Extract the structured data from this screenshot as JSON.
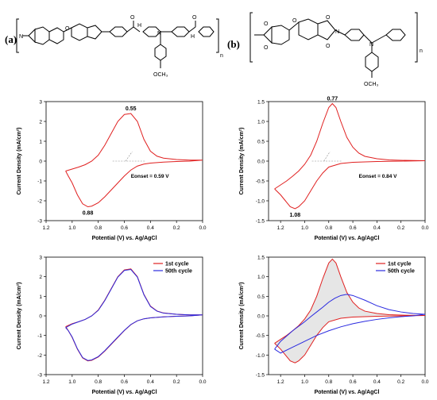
{
  "panel_labels": {
    "a": "(a)",
    "b": "(b)"
  },
  "structures": {
    "a": {
      "n": "n",
      "och3": "OCH₃",
      "o": "O",
      "n_atom": "N",
      "nh": "H"
    },
    "b": {
      "n": "n",
      "och3": "OCH₃",
      "o": "O",
      "n_atom": "N"
    }
  },
  "colors": {
    "red": "#e02020",
    "blue": "#2a2ae0",
    "shade": "#b8b8b8",
    "molecule": "#000000"
  },
  "chart_data": [
    {
      "type": "line",
      "id": "cv-a",
      "xlabel": "Potential (V) vs. Ag/AgCl",
      "ylabel": "Current Density (mA/cm²)",
      "xlim": [
        1.2,
        0.0
      ],
      "ylim": [
        -3,
        3
      ],
      "xticks": [
        "1.2",
        "1.0",
        "0.8",
        "0.6",
        "0.4",
        "0.2",
        "0.0"
      ],
      "yticks": [
        "3",
        "2",
        "1",
        "0",
        "-1",
        "-2",
        "-3"
      ],
      "annotations": {
        "peak_ox": "0.55",
        "peak_red": "0.88",
        "onset": "Eonset = 0.59 V"
      },
      "series": [
        {
          "color": "red",
          "x": [
            1.05,
            1.0,
            0.95,
            0.9,
            0.85,
            0.8,
            0.75,
            0.7,
            0.65,
            0.6,
            0.55,
            0.5,
            0.45,
            0.4,
            0.35,
            0.3,
            0.2,
            0.1,
            0.0,
            0.1,
            0.2,
            0.3,
            0.4,
            0.45,
            0.5,
            0.55,
            0.6,
            0.65,
            0.7,
            0.75,
            0.8,
            0.85,
            0.88,
            0.92,
            0.96,
            1.0,
            1.03,
            1.05
          ],
          "y": [
            -0.5,
            -0.4,
            -0.3,
            -0.18,
            0.0,
            0.3,
            0.8,
            1.4,
            2.0,
            2.35,
            2.4,
            2.0,
            1.1,
            0.5,
            0.25,
            0.15,
            0.08,
            0.05,
            0.05,
            0.0,
            -0.02,
            -0.05,
            -0.1,
            -0.15,
            -0.25,
            -0.45,
            -0.75,
            -1.1,
            -1.45,
            -1.8,
            -2.1,
            -2.27,
            -2.3,
            -2.15,
            -1.7,
            -1.1,
            -0.75,
            -0.5
          ]
        }
      ]
    },
    {
      "type": "line",
      "id": "cv-b",
      "xlabel": "Potential (V) vs. Ag/AgCl",
      "ylabel": "Current Density (mA/cm²)",
      "xlim": [
        1.3,
        0.0
      ],
      "ylim": [
        -1.5,
        1.5
      ],
      "xticks": [
        "1.2",
        "1.0",
        "0.8",
        "0.6",
        "0.4",
        "0.2",
        "0.0"
      ],
      "yticks": [
        "1.5",
        "1.0",
        "0.5",
        "0.0",
        "-0.5",
        "-1.0",
        "-1.5"
      ],
      "annotations": {
        "peak_ox": "0.77",
        "peak_red": "1.08",
        "onset": "Eonset = 0.84 V"
      },
      "series": [
        {
          "color": "red",
          "x": [
            1.25,
            1.2,
            1.15,
            1.1,
            1.05,
            1.0,
            0.95,
            0.9,
            0.85,
            0.8,
            0.77,
            0.74,
            0.7,
            0.65,
            0.6,
            0.55,
            0.5,
            0.4,
            0.3,
            0.2,
            0.0,
            0.2,
            0.4,
            0.6,
            0.7,
            0.8,
            0.85,
            0.9,
            0.95,
            1.0,
            1.05,
            1.08,
            1.12,
            1.16,
            1.2,
            1.25
          ],
          "y": [
            -0.7,
            -0.6,
            -0.5,
            -0.38,
            -0.25,
            -0.08,
            0.15,
            0.5,
            0.95,
            1.35,
            1.45,
            1.35,
            1.0,
            0.6,
            0.35,
            0.2,
            0.12,
            0.06,
            0.03,
            0.02,
            0.01,
            0.0,
            -0.01,
            -0.03,
            -0.06,
            -0.15,
            -0.3,
            -0.5,
            -0.75,
            -1.0,
            -1.15,
            -1.2,
            -1.15,
            -1.0,
            -0.85,
            -0.7
          ]
        }
      ]
    },
    {
      "type": "line",
      "id": "cv-c",
      "xlabel": "Potential (V) vs. Ag/AgCl",
      "ylabel": "Current Density (mA/cm²)",
      "xlim": [
        1.2,
        0.0
      ],
      "ylim": [
        -3,
        3
      ],
      "xticks": [
        "1.2",
        "1.0",
        "0.8",
        "0.6",
        "0.4",
        "0.2",
        "0.0"
      ],
      "yticks": [
        "3",
        "2",
        "1",
        "0",
        "-1",
        "-2",
        "-3"
      ],
      "legend": [
        "1st cycle",
        "50th cycle"
      ],
      "legend_position": "top-right",
      "series": [
        {
          "name": "1st cycle",
          "color": "red",
          "x": [
            1.05,
            1.0,
            0.95,
            0.9,
            0.85,
            0.8,
            0.75,
            0.7,
            0.65,
            0.6,
            0.55,
            0.5,
            0.45,
            0.4,
            0.35,
            0.3,
            0.2,
            0.1,
            0.0,
            0.1,
            0.2,
            0.3,
            0.4,
            0.45,
            0.5,
            0.55,
            0.6,
            0.65,
            0.7,
            0.75,
            0.8,
            0.85,
            0.88,
            0.92,
            0.96,
            1.0,
            1.03,
            1.05
          ],
          "y": [
            -0.55,
            -0.4,
            -0.3,
            -0.18,
            0.0,
            0.3,
            0.8,
            1.4,
            2.0,
            2.35,
            2.4,
            2.0,
            1.1,
            0.5,
            0.25,
            0.15,
            0.08,
            0.05,
            0.05,
            0.0,
            -0.02,
            -0.05,
            -0.1,
            -0.15,
            -0.25,
            -0.45,
            -0.75,
            -1.1,
            -1.45,
            -1.8,
            -2.1,
            -2.27,
            -2.3,
            -2.15,
            -1.7,
            -1.1,
            -0.75,
            -0.55
          ]
        },
        {
          "name": "50th cycle",
          "color": "blue",
          "x": [
            1.05,
            1.0,
            0.95,
            0.9,
            0.85,
            0.8,
            0.75,
            0.7,
            0.65,
            0.6,
            0.55,
            0.5,
            0.45,
            0.4,
            0.35,
            0.3,
            0.2,
            0.1,
            0.0,
            0.1,
            0.2,
            0.3,
            0.4,
            0.45,
            0.5,
            0.55,
            0.6,
            0.65,
            0.7,
            0.75,
            0.8,
            0.85,
            0.88,
            0.92,
            0.96,
            1.0,
            1.03,
            1.05
          ],
          "y": [
            -0.6,
            -0.42,
            -0.3,
            -0.18,
            0.0,
            0.28,
            0.78,
            1.38,
            1.98,
            2.32,
            2.37,
            1.98,
            1.08,
            0.48,
            0.24,
            0.14,
            0.08,
            0.05,
            0.05,
            0.0,
            -0.02,
            -0.05,
            -0.1,
            -0.15,
            -0.25,
            -0.44,
            -0.74,
            -1.08,
            -1.43,
            -1.78,
            -2.08,
            -2.25,
            -2.28,
            -2.13,
            -1.68,
            -1.08,
            -0.75,
            -0.6
          ]
        }
      ]
    },
    {
      "type": "line",
      "id": "cv-d",
      "xlabel": "Potential (V) vs. Ag/AgCl",
      "ylabel": "Current Density (mA/cm²)",
      "xlim": [
        1.3,
        0.0
      ],
      "ylim": [
        -1.5,
        1.5
      ],
      "xticks": [
        "1.2",
        "1.0",
        "0.8",
        "0.6",
        "0.4",
        "0.2",
        "0.0"
      ],
      "yticks": [
        "1.5",
        "1.0",
        "0.5",
        "0.0",
        "-0.5",
        "-1.0",
        "-1.5"
      ],
      "legend": [
        "1st cycle",
        "50th cycle"
      ],
      "legend_position": "top-right",
      "shaded_between": true,
      "series": [
        {
          "name": "1st cycle",
          "color": "red",
          "x": [
            1.25,
            1.2,
            1.15,
            1.1,
            1.05,
            1.0,
            0.95,
            0.9,
            0.85,
            0.8,
            0.77,
            0.74,
            0.7,
            0.65,
            0.6,
            0.55,
            0.5,
            0.4,
            0.3,
            0.2,
            0.0,
            0.2,
            0.4,
            0.6,
            0.7,
            0.8,
            0.85,
            0.9,
            0.95,
            1.0,
            1.05,
            1.08,
            1.12,
            1.16,
            1.2,
            1.25
          ],
          "y": [
            -0.7,
            -0.6,
            -0.5,
            -0.38,
            -0.25,
            -0.08,
            0.15,
            0.5,
            0.95,
            1.35,
            1.45,
            1.35,
            1.0,
            0.6,
            0.35,
            0.2,
            0.12,
            0.06,
            0.03,
            0.02,
            0.01,
            0.0,
            -0.01,
            -0.03,
            -0.06,
            -0.15,
            -0.3,
            -0.5,
            -0.75,
            -1.0,
            -1.15,
            -1.2,
            -1.15,
            -1.0,
            -0.85,
            -0.7
          ]
        },
        {
          "name": "50th cycle",
          "color": "blue",
          "x": [
            1.25,
            1.2,
            1.1,
            1.0,
            0.95,
            0.9,
            0.85,
            0.8,
            0.75,
            0.7,
            0.65,
            0.6,
            0.5,
            0.4,
            0.3,
            0.2,
            0.1,
            0.0,
            0.1,
            0.2,
            0.3,
            0.4,
            0.5,
            0.6,
            0.7,
            0.8,
            0.9,
            1.0,
            1.1,
            1.2,
            1.25
          ],
          "y": [
            -0.85,
            -0.65,
            -0.38,
            -0.15,
            -0.02,
            0.1,
            0.22,
            0.35,
            0.45,
            0.52,
            0.55,
            0.52,
            0.4,
            0.26,
            0.16,
            0.1,
            0.06,
            0.04,
            0.0,
            -0.02,
            -0.05,
            -0.09,
            -0.14,
            -0.2,
            -0.28,
            -0.38,
            -0.5,
            -0.65,
            -0.8,
            -0.95,
            -0.85
          ]
        }
      ]
    }
  ]
}
